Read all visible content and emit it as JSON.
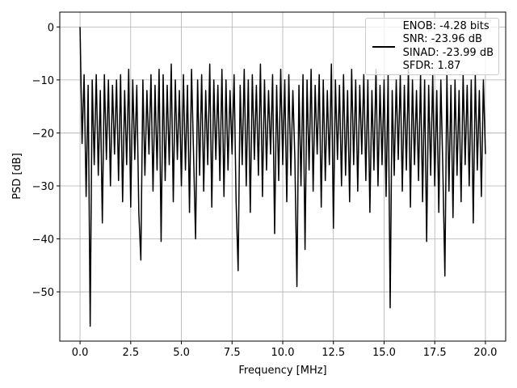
{
  "chart_data": {
    "type": "line",
    "xlabel": "Frequency [MHz]",
    "ylabel": "PSD [dB]",
    "x": [
      0,
      0.1,
      0.2,
      0.3,
      0.4,
      0.5,
      0.6,
      0.7,
      0.8,
      0.9,
      1,
      1.1,
      1.2,
      1.3,
      1.4,
      1.5,
      1.6,
      1.7,
      1.8,
      1.9,
      2,
      2.1,
      2.2,
      2.3,
      2.4,
      2.5,
      2.6,
      2.7,
      2.8,
      2.9,
      3,
      3.1,
      3.2,
      3.3,
      3.4,
      3.5,
      3.6,
      3.7,
      3.8,
      3.9,
      4,
      4.1,
      4.2,
      4.3,
      4.4,
      4.5,
      4.6,
      4.7,
      4.8,
      4.9,
      5,
      5.1,
      5.2,
      5.3,
      5.4,
      5.5,
      5.6,
      5.7,
      5.8,
      5.9,
      6,
      6.1,
      6.2,
      6.3,
      6.4,
      6.5,
      6.6,
      6.7,
      6.8,
      6.9,
      7,
      7.1,
      7.2,
      7.3,
      7.4,
      7.5,
      7.6,
      7.7,
      7.8,
      7.9,
      8,
      8.1,
      8.2,
      8.3,
      8.4,
      8.5,
      8.6,
      8.7,
      8.8,
      8.9,
      9,
      9.1,
      9.2,
      9.3,
      9.4,
      9.5,
      9.6,
      9.7,
      9.8,
      9.9,
      10,
      10.1,
      10.2,
      10.3,
      10.4,
      10.5,
      10.6,
      10.7,
      10.8,
      10.9,
      11,
      11.1,
      11.2,
      11.3,
      11.4,
      11.5,
      11.6,
      11.7,
      11.8,
      11.9,
      12,
      12.1,
      12.2,
      12.3,
      12.4,
      12.5,
      12.6,
      12.7,
      12.8,
      12.9,
      13,
      13.1,
      13.2,
      13.3,
      13.4,
      13.5,
      13.6,
      13.7,
      13.8,
      13.9,
      14,
      14.1,
      14.2,
      14.3,
      14.4,
      14.5,
      14.6,
      14.7,
      14.8,
      14.9,
      15,
      15.1,
      15.2,
      15.3,
      15.4,
      15.5,
      15.6,
      15.7,
      15.8,
      15.9,
      16,
      16.1,
      16.2,
      16.3,
      16.4,
      16.5,
      16.6,
      16.7,
      16.8,
      16.9,
      17,
      17.1,
      17.2,
      17.3,
      17.4,
      17.5,
      17.6,
      17.7,
      17.8,
      17.9,
      18,
      18.1,
      18.2,
      18.3,
      18.4,
      18.5,
      18.6,
      18.7,
      18.8,
      18.9,
      19,
      19.1,
      19.2,
      19.3,
      19.4,
      19.5,
      19.6,
      19.7,
      19.8,
      19.9,
      20
    ],
    "series": [
      {
        "name": "ENOB: -4.28 bits\nSNR: -23.96 dB\nSINAD: -23.99 dB\nSFDR: 1.87",
        "color": "#000000",
        "values": [
          0,
          -22,
          -9,
          -32,
          -11,
          -56.5,
          -10,
          -26,
          -9,
          -28,
          -12,
          -37,
          -9,
          -25,
          -10,
          -30,
          -11,
          -24,
          -10,
          -29,
          -9,
          -33,
          -12,
          -26,
          -8,
          -34,
          -10,
          -25,
          -11,
          -35,
          -44,
          -10,
          -28,
          -12,
          -24,
          -9,
          -31,
          -11,
          -27,
          -8,
          -40.5,
          -9,
          -29,
          -11,
          -26,
          -7,
          -33,
          -10,
          -25,
          -12,
          -30,
          -9,
          -27,
          -11,
          -35,
          -8,
          -24,
          -40,
          -10,
          -28,
          -9,
          -31,
          -12,
          -26,
          -7,
          -34,
          -10,
          -25,
          -11,
          -29,
          -8,
          -32,
          -10,
          -27,
          -12,
          -24,
          -9,
          -33,
          -46,
          -11,
          -26,
          -8,
          -30,
          -10,
          -35,
          -9,
          -25,
          -11,
          -28,
          -7,
          -32,
          -10,
          -27,
          -12,
          -24,
          -9,
          -39,
          -11,
          -29,
          -8,
          -26,
          -10,
          -33,
          -9,
          -28,
          -12,
          -25,
          -49,
          -11,
          -30,
          -9,
          -42,
          -10,
          -27,
          -8,
          -31,
          -11,
          -24,
          -9,
          -34,
          -10,
          -29,
          -12,
          -26,
          -7,
          -38,
          -10,
          -25,
          -11,
          -30,
          -9,
          -28,
          -12,
          -33,
          -8,
          -26,
          -10,
          -31,
          -11,
          -24,
          -9,
          -29,
          -10,
          -35,
          -12,
          -27,
          -8,
          -30,
          -11,
          -26,
          -10,
          -32,
          -9,
          -53,
          -12,
          -28,
          -10,
          -25,
          -9,
          -31,
          -11,
          -27,
          -8,
          -34,
          -10,
          -26,
          -12,
          -29,
          -9,
          -33,
          -10,
          -40.5,
          -11,
          -28,
          -9,
          -30,
          -12,
          -35,
          -10,
          -27,
          -47,
          -9,
          -31,
          -11,
          -36,
          -10,
          -28,
          -12,
          -33,
          -9,
          -26,
          -11,
          -30,
          -10,
          -37,
          -9,
          -27,
          -12,
          -32,
          -10,
          -24
        ]
      }
    ],
    "xlim": [
      -1,
      21
    ],
    "ylim": [
      -59.3,
      2.8
    ],
    "xticks": [
      {
        "value": 0,
        "label": "0.0"
      },
      {
        "value": 2.5,
        "label": "2.5"
      },
      {
        "value": 5,
        "label": "5.0"
      },
      {
        "value": 7.5,
        "label": "7.5"
      },
      {
        "value": 10,
        "label": "10.0"
      },
      {
        "value": 12.5,
        "label": "12.5"
      },
      {
        "value": 15,
        "label": "15.0"
      },
      {
        "value": 17.5,
        "label": "17.5"
      },
      {
        "value": 20,
        "label": "20.0"
      }
    ],
    "yticks": [
      0,
      {
        "value": -10,
        "label": "−10"
      },
      {
        "value": -20,
        "label": "−20"
      },
      {
        "value": -30,
        "label": "−30"
      },
      {
        "value": -40,
        "label": "−40"
      },
      {
        "value": -50,
        "label": "−50"
      }
    ],
    "grid": true,
    "legend": "upper right"
  }
}
